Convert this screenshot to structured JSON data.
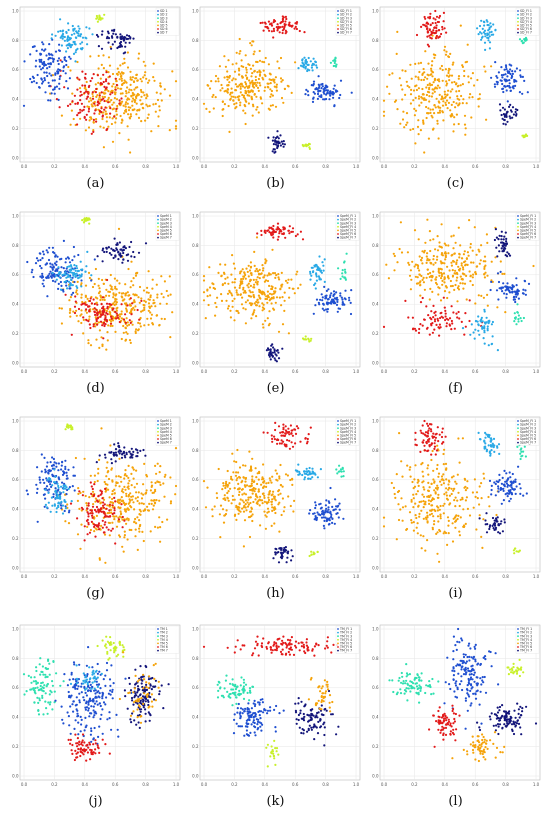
{
  "colors": {
    "orange": "#f5a30a",
    "red": "#e21a1a",
    "blue": "#1f4fd0",
    "navy": "#13157a",
    "cyan": "#29a9e6",
    "teal": "#2fe0b0",
    "lime": "#c8f02a"
  },
  "chart_data": [
    {
      "label": "(a)",
      "type": "scatter",
      "x_ticks": [
        "0.0",
        "0.2",
        "0.4",
        "0.6",
        "0.8",
        "1.0"
      ],
      "y_ticks": [
        "0.0",
        "0.2",
        "0.4",
        "0.6",
        "0.8",
        "1.0"
      ],
      "legend": [
        "SD 1",
        "SD 2",
        "SD 3",
        "SD 4",
        "SD 5",
        "SD 6",
        "SD 7"
      ],
      "clusters": [
        {
          "color": "orange",
          "cx": 0.6,
          "cy": 0.42,
          "rx": 0.32,
          "ry": 0.25,
          "n": 320
        },
        {
          "color": "red",
          "cx": 0.45,
          "cy": 0.4,
          "rx": 0.18,
          "ry": 0.2,
          "n": 110
        },
        {
          "color": "blue",
          "cx": 0.17,
          "cy": 0.62,
          "rx": 0.14,
          "ry": 0.2,
          "n": 120
        },
        {
          "color": "cyan",
          "cx": 0.33,
          "cy": 0.8,
          "rx": 0.1,
          "ry": 0.1,
          "n": 80
        },
        {
          "color": "navy",
          "cx": 0.62,
          "cy": 0.8,
          "rx": 0.12,
          "ry": 0.07,
          "n": 60
        },
        {
          "color": "lime",
          "cx": 0.5,
          "cy": 0.95,
          "rx": 0.03,
          "ry": 0.03,
          "n": 15
        }
      ]
    },
    {
      "label": "(b)",
      "type": "scatter",
      "x_ticks": [
        "0.0",
        "0.2",
        "0.4",
        "0.6",
        "0.8",
        "1.0"
      ],
      "y_ticks": [
        "0.0",
        "0.2",
        "0.4",
        "0.6",
        "0.8",
        "1.0"
      ],
      "legend": [
        "SD_FI 1",
        "SD_FI 2",
        "SD_FI 3",
        "SD_FI 4",
        "SD_FI 5",
        "SD_FI 6",
        "SD_FI 7"
      ],
      "clusters": [
        {
          "color": "orange",
          "cx": 0.3,
          "cy": 0.5,
          "rx": 0.24,
          "ry": 0.2,
          "n": 260
        },
        {
          "color": "red",
          "cx": 0.5,
          "cy": 0.9,
          "rx": 0.13,
          "ry": 0.06,
          "n": 70
        },
        {
          "color": "cyan",
          "cx": 0.68,
          "cy": 0.64,
          "rx": 0.07,
          "ry": 0.05,
          "n": 40
        },
        {
          "color": "teal",
          "cx": 0.86,
          "cy": 0.66,
          "rx": 0.02,
          "ry": 0.04,
          "n": 12
        },
        {
          "color": "blue",
          "cx": 0.8,
          "cy": 0.45,
          "rx": 0.11,
          "ry": 0.08,
          "n": 80
        },
        {
          "color": "navy",
          "cx": 0.48,
          "cy": 0.1,
          "rx": 0.05,
          "ry": 0.07,
          "n": 35
        },
        {
          "color": "lime",
          "cx": 0.68,
          "cy": 0.08,
          "rx": 0.03,
          "ry": 0.02,
          "n": 12
        }
      ]
    },
    {
      "label": "(c)",
      "type": "scatter",
      "x_ticks": [
        "0.0",
        "0.2",
        "0.4",
        "0.6",
        "0.8",
        "1.0"
      ],
      "y_ticks": [
        "0.0",
        "0.2",
        "0.4",
        "0.6",
        "0.8",
        "1.0"
      ],
      "legend": [
        "SD_FI 1",
        "SD_FI 2",
        "SD_FI 3",
        "SD_FI 4",
        "SD_FI 5",
        "SD_FI 6",
        "SD_FI 7"
      ],
      "clusters": [
        {
          "color": "orange",
          "cx": 0.35,
          "cy": 0.45,
          "rx": 0.28,
          "ry": 0.3,
          "n": 280
        },
        {
          "color": "red",
          "cx": 0.33,
          "cy": 0.88,
          "rx": 0.08,
          "ry": 0.1,
          "n": 70
        },
        {
          "color": "cyan",
          "cx": 0.68,
          "cy": 0.85,
          "rx": 0.05,
          "ry": 0.1,
          "n": 45
        },
        {
          "color": "teal",
          "cx": 0.92,
          "cy": 0.8,
          "rx": 0.04,
          "ry": 0.03,
          "n": 12
        },
        {
          "color": "blue",
          "cx": 0.82,
          "cy": 0.55,
          "rx": 0.1,
          "ry": 0.12,
          "n": 80
        },
        {
          "color": "navy",
          "cx": 0.82,
          "cy": 0.3,
          "rx": 0.07,
          "ry": 0.06,
          "n": 35
        },
        {
          "color": "lime",
          "cx": 0.92,
          "cy": 0.15,
          "rx": 0.02,
          "ry": 0.02,
          "n": 8
        }
      ]
    },
    {
      "label": "(d)",
      "type": "scatter",
      "x_ticks": [
        "0.0",
        "0.2",
        "0.4",
        "0.6",
        "0.8",
        "1.0"
      ],
      "y_ticks": [
        "0.0",
        "0.2",
        "0.4",
        "0.6",
        "0.8",
        "1.0"
      ],
      "legend": [
        "SpeM 1",
        "SpeM 2",
        "SpeM 3",
        "SpeM 4",
        "SpeM 5",
        "SpeM 6",
        "SpeM 7"
      ],
      "clusters": [
        {
          "color": "orange",
          "cx": 0.62,
          "cy": 0.38,
          "rx": 0.32,
          "ry": 0.25,
          "n": 330
        },
        {
          "color": "red",
          "cx": 0.52,
          "cy": 0.35,
          "rx": 0.2,
          "ry": 0.12,
          "n": 110
        },
        {
          "color": "blue",
          "cx": 0.22,
          "cy": 0.63,
          "rx": 0.16,
          "ry": 0.16,
          "n": 130
        },
        {
          "color": "cyan",
          "cx": 0.32,
          "cy": 0.6,
          "rx": 0.1,
          "ry": 0.1,
          "n": 70
        },
        {
          "color": "navy",
          "cx": 0.62,
          "cy": 0.76,
          "rx": 0.12,
          "ry": 0.07,
          "n": 60
        },
        {
          "color": "lime",
          "cx": 0.4,
          "cy": 0.96,
          "rx": 0.03,
          "ry": 0.03,
          "n": 15
        }
      ]
    },
    {
      "label": "(e)",
      "type": "scatter",
      "x_ticks": [
        "0.0",
        "0.2",
        "0.4",
        "0.6",
        "0.8",
        "1.0"
      ],
      "y_ticks": [
        "0.0",
        "0.2",
        "0.4",
        "0.6",
        "0.8",
        "1.0"
      ],
      "legend": [
        "SpeM_FI 1",
        "SpeM_FI 2",
        "SpeM_FI 3",
        "SpeM_FI 4",
        "SpeM_FI 5",
        "SpeM_FI 6",
        "SpeM_FI 7"
      ],
      "clusters": [
        {
          "color": "orange",
          "cx": 0.32,
          "cy": 0.5,
          "rx": 0.27,
          "ry": 0.22,
          "n": 280
        },
        {
          "color": "red",
          "cx": 0.5,
          "cy": 0.9,
          "rx": 0.12,
          "ry": 0.05,
          "n": 60
        },
        {
          "color": "cyan",
          "cx": 0.75,
          "cy": 0.62,
          "rx": 0.05,
          "ry": 0.1,
          "n": 45
        },
        {
          "color": "teal",
          "cx": 0.92,
          "cy": 0.62,
          "rx": 0.02,
          "ry": 0.1,
          "n": 15
        },
        {
          "color": "blue",
          "cx": 0.83,
          "cy": 0.42,
          "rx": 0.11,
          "ry": 0.08,
          "n": 80
        },
        {
          "color": "navy",
          "cx": 0.45,
          "cy": 0.07,
          "rx": 0.06,
          "ry": 0.05,
          "n": 35
        },
        {
          "color": "lime",
          "cx": 0.68,
          "cy": 0.16,
          "rx": 0.03,
          "ry": 0.02,
          "n": 10
        }
      ]
    },
    {
      "label": "(f)",
      "type": "scatter",
      "x_ticks": [
        "0.0",
        "0.2",
        "0.4",
        "0.6",
        "0.8",
        "1.0"
      ],
      "y_ticks": [
        "0.0",
        "0.2",
        "0.4",
        "0.6",
        "0.8",
        "1.0"
      ],
      "legend": [
        "SpeM_FI 1",
        "SpeM_FI 2",
        "SpeM_FI 3",
        "SpeM_FI 4",
        "SpeM_FI 5",
        "SpeM_FI 6",
        "SpeM_FI 7"
      ],
      "clusters": [
        {
          "color": "orange",
          "cx": 0.42,
          "cy": 0.65,
          "rx": 0.3,
          "ry": 0.22,
          "n": 280
        },
        {
          "color": "red",
          "cx": 0.35,
          "cy": 0.3,
          "rx": 0.22,
          "ry": 0.1,
          "n": 80
        },
        {
          "color": "cyan",
          "cx": 0.65,
          "cy": 0.25,
          "rx": 0.07,
          "ry": 0.12,
          "n": 50
        },
        {
          "color": "teal",
          "cx": 0.88,
          "cy": 0.32,
          "rx": 0.03,
          "ry": 0.06,
          "n": 15
        },
        {
          "color": "blue",
          "cx": 0.83,
          "cy": 0.5,
          "rx": 0.1,
          "ry": 0.08,
          "n": 70
        },
        {
          "color": "navy",
          "cx": 0.78,
          "cy": 0.8,
          "rx": 0.05,
          "ry": 0.08,
          "n": 40
        }
      ]
    },
    {
      "label": "(g)",
      "type": "scatter",
      "x_ticks": [
        "0.0",
        "0.2",
        "0.4",
        "0.6",
        "0.8",
        "1.0"
      ],
      "y_ticks": [
        "0.0",
        "0.2",
        "0.4",
        "0.6",
        "0.8",
        "1.0"
      ],
      "legend": [
        "SpeM 1",
        "SpeM 2",
        "SpeM 3",
        "SpeM 4",
        "SpeM 5",
        "SpeM 6",
        "SpeM 7"
      ],
      "clusters": [
        {
          "color": "orange",
          "cx": 0.65,
          "cy": 0.45,
          "rx": 0.3,
          "ry": 0.28,
          "n": 320
        },
        {
          "color": "red",
          "cx": 0.5,
          "cy": 0.38,
          "rx": 0.15,
          "ry": 0.18,
          "n": 110
        },
        {
          "color": "blue",
          "cx": 0.2,
          "cy": 0.6,
          "rx": 0.13,
          "ry": 0.18,
          "n": 120
        },
        {
          "color": "cyan",
          "cx": 0.22,
          "cy": 0.5,
          "rx": 0.08,
          "ry": 0.12,
          "n": 60
        },
        {
          "color": "navy",
          "cx": 0.65,
          "cy": 0.78,
          "rx": 0.14,
          "ry": 0.06,
          "n": 60
        },
        {
          "color": "lime",
          "cx": 0.3,
          "cy": 0.96,
          "rx": 0.03,
          "ry": 0.03,
          "n": 15
        }
      ]
    },
    {
      "label": "(h)",
      "type": "scatter",
      "x_ticks": [
        "0.0",
        "0.2",
        "0.4",
        "0.6",
        "0.8",
        "1.0"
      ],
      "y_ticks": [
        "0.0",
        "0.2",
        "0.4",
        "0.6",
        "0.8",
        "1.0"
      ],
      "legend": [
        "SpeM_FI 1",
        "SpeM_FI 2",
        "SpeM_FI 3",
        "SpeM_FI 4",
        "SpeM_FI 5",
        "SpeM_FI 6",
        "SpeM_FI 7"
      ],
      "clusters": [
        {
          "color": "orange",
          "cx": 0.32,
          "cy": 0.5,
          "rx": 0.26,
          "ry": 0.22,
          "n": 280
        },
        {
          "color": "red",
          "cx": 0.55,
          "cy": 0.9,
          "rx": 0.12,
          "ry": 0.08,
          "n": 70
        },
        {
          "color": "cyan",
          "cx": 0.68,
          "cy": 0.65,
          "rx": 0.07,
          "ry": 0.06,
          "n": 40
        },
        {
          "color": "teal",
          "cx": 0.9,
          "cy": 0.66,
          "rx": 0.03,
          "ry": 0.04,
          "n": 12
        },
        {
          "color": "blue",
          "cx": 0.8,
          "cy": 0.38,
          "rx": 0.11,
          "ry": 0.1,
          "n": 80
        },
        {
          "color": "navy",
          "cx": 0.52,
          "cy": 0.1,
          "rx": 0.07,
          "ry": 0.05,
          "n": 35
        },
        {
          "color": "lime",
          "cx": 0.72,
          "cy": 0.1,
          "rx": 0.03,
          "ry": 0.02,
          "n": 10
        }
      ]
    },
    {
      "label": "(i)",
      "type": "scatter",
      "x_ticks": [
        "0.0",
        "0.2",
        "0.4",
        "0.6",
        "0.8",
        "1.0"
      ],
      "y_ticks": [
        "0.0",
        "0.2",
        "0.4",
        "0.6",
        "0.8",
        "1.0"
      ],
      "legend": [
        "SpeM_FI 1",
        "SpeM_FI 2",
        "SpeM_FI 3",
        "SpeM_FI 4",
        "SpeM_FI 5",
        "SpeM_FI 6",
        "SpeM_FI 7"
      ],
      "clusters": [
        {
          "color": "orange",
          "cx": 0.35,
          "cy": 0.45,
          "rx": 0.28,
          "ry": 0.3,
          "n": 280
        },
        {
          "color": "red",
          "cx": 0.3,
          "cy": 0.88,
          "rx": 0.08,
          "ry": 0.1,
          "n": 70
        },
        {
          "color": "cyan",
          "cx": 0.7,
          "cy": 0.85,
          "rx": 0.06,
          "ry": 0.09,
          "n": 45
        },
        {
          "color": "teal",
          "cx": 0.9,
          "cy": 0.8,
          "rx": 0.04,
          "ry": 0.05,
          "n": 12
        },
        {
          "color": "blue",
          "cx": 0.82,
          "cy": 0.56,
          "rx": 0.1,
          "ry": 0.12,
          "n": 80
        },
        {
          "color": "navy",
          "cx": 0.72,
          "cy": 0.3,
          "rx": 0.08,
          "ry": 0.06,
          "n": 35
        },
        {
          "color": "lime",
          "cx": 0.88,
          "cy": 0.12,
          "rx": 0.03,
          "ry": 0.02,
          "n": 8
        }
      ]
    },
    {
      "label": "(j)",
      "type": "scatter",
      "x_ticks": [
        "0.0",
        "0.2",
        "0.4",
        "0.6",
        "0.8",
        "1.0"
      ],
      "y_ticks": [
        "0.0",
        "0.2",
        "0.4",
        "0.6",
        "0.8",
        "1.0"
      ],
      "legend": [
        "TM 1",
        "TM 2",
        "TM 3",
        "TM 4",
        "TM 5",
        "TM 6",
        "TM 7"
      ],
      "clusters": [
        {
          "color": "teal",
          "cx": 0.12,
          "cy": 0.62,
          "rx": 0.1,
          "ry": 0.18,
          "n": 90
        },
        {
          "color": "blue",
          "cx": 0.42,
          "cy": 0.55,
          "rx": 0.17,
          "ry": 0.25,
          "n": 200
        },
        {
          "color": "cyan",
          "cx": 0.42,
          "cy": 0.66,
          "rx": 0.08,
          "ry": 0.08,
          "n": 40
        },
        {
          "color": "red",
          "cx": 0.4,
          "cy": 0.18,
          "rx": 0.1,
          "ry": 0.08,
          "n": 70
        },
        {
          "color": "lime",
          "cx": 0.6,
          "cy": 0.88,
          "rx": 0.08,
          "ry": 0.07,
          "n": 40
        },
        {
          "color": "navy",
          "cx": 0.78,
          "cy": 0.55,
          "rx": 0.12,
          "ry": 0.18,
          "n": 120
        },
        {
          "color": "orange",
          "cx": 0.78,
          "cy": 0.55,
          "rx": 0.12,
          "ry": 0.18,
          "n": 50
        }
      ]
    },
    {
      "label": "(k)",
      "type": "scatter",
      "x_ticks": [
        "0.0",
        "0.2",
        "0.4",
        "0.6",
        "0.8",
        "1.0"
      ],
      "y_ticks": [
        "0.0",
        "0.2",
        "0.4",
        "0.6",
        "0.8",
        "1.0"
      ],
      "legend": [
        "TM_FI 1",
        "TM_FI 2",
        "TM_FI 3",
        "TM_FI 4",
        "TM_FI 5",
        "TM_FI 6",
        "TM_FI 7"
      ],
      "clusters": [
        {
          "color": "red",
          "cx": 0.55,
          "cy": 0.88,
          "rx": 0.32,
          "ry": 0.06,
          "n": 110
        },
        {
          "color": "teal",
          "cx": 0.2,
          "cy": 0.58,
          "rx": 0.12,
          "ry": 0.08,
          "n": 70
        },
        {
          "color": "blue",
          "cx": 0.32,
          "cy": 0.4,
          "rx": 0.12,
          "ry": 0.12,
          "n": 110
        },
        {
          "color": "navy",
          "cx": 0.72,
          "cy": 0.4,
          "rx": 0.12,
          "ry": 0.12,
          "n": 90
        },
        {
          "color": "orange",
          "cx": 0.78,
          "cy": 0.55,
          "rx": 0.08,
          "ry": 0.12,
          "n": 40
        },
        {
          "color": "lime",
          "cx": 0.45,
          "cy": 0.15,
          "rx": 0.03,
          "ry": 0.08,
          "n": 20
        }
      ]
    },
    {
      "label": "(l)",
      "type": "scatter",
      "x_ticks": [
        "0.0",
        "0.2",
        "0.4",
        "0.6",
        "0.8",
        "1.0"
      ],
      "y_ticks": [
        "0.0",
        "0.2",
        "0.4",
        "0.6",
        "0.8",
        "1.0"
      ],
      "legend": [
        "TM_FI 1",
        "TM_FI 2",
        "TM_FI 3",
        "TM_FI 4",
        "TM_FI 5",
        "TM_FI 6",
        "TM_FI 7"
      ],
      "clusters": [
        {
          "color": "teal",
          "cx": 0.2,
          "cy": 0.62,
          "rx": 0.14,
          "ry": 0.1,
          "n": 80
        },
        {
          "color": "blue",
          "cx": 0.55,
          "cy": 0.7,
          "rx": 0.14,
          "ry": 0.22,
          "n": 150
        },
        {
          "color": "red",
          "cx": 0.4,
          "cy": 0.35,
          "rx": 0.1,
          "ry": 0.12,
          "n": 70
        },
        {
          "color": "navy",
          "cx": 0.8,
          "cy": 0.38,
          "rx": 0.14,
          "ry": 0.1,
          "n": 100
        },
        {
          "color": "orange",
          "cx": 0.65,
          "cy": 0.2,
          "rx": 0.12,
          "ry": 0.1,
          "n": 60
        },
        {
          "color": "lime",
          "cx": 0.85,
          "cy": 0.72,
          "rx": 0.06,
          "ry": 0.06,
          "n": 25
        }
      ]
    }
  ]
}
